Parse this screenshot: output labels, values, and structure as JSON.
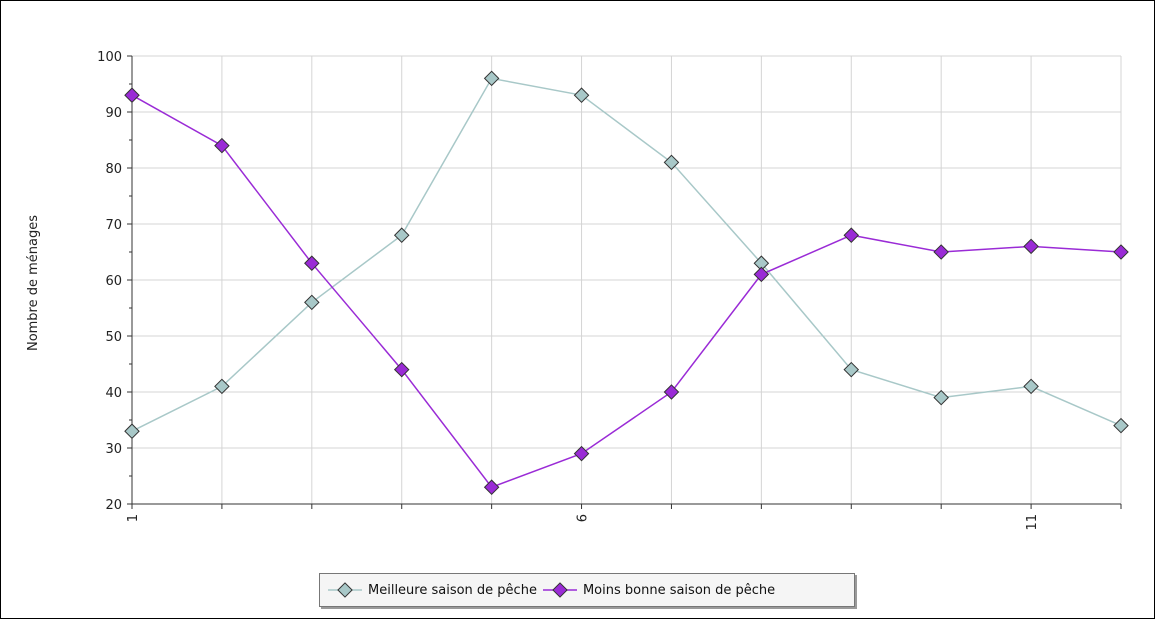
{
  "chart_data": {
    "type": "line",
    "x": [
      1,
      2,
      3,
      4,
      5,
      6,
      7,
      8,
      9,
      10,
      11,
      12
    ],
    "x_tick_labels": [
      "1",
      "6",
      "11"
    ],
    "xlim": [
      1,
      12
    ],
    "ylim": [
      20,
      100
    ],
    "y_ticks": [
      20,
      30,
      40,
      50,
      60,
      70,
      80,
      90,
      100
    ],
    "ylabel": "Nombre de ménages",
    "xlabel": "",
    "grid": true,
    "legend_position": "bottom-center",
    "series": [
      {
        "name": "Meilleure saison de pêche",
        "color": "#a8c8c8",
        "values": [
          33,
          41,
          56,
          68,
          96,
          93,
          81,
          63,
          44,
          39,
          41,
          34
        ]
      },
      {
        "name": "Moins bonne saison de pêche",
        "color": "#9a2bd6",
        "values": [
          93,
          84,
          63,
          44,
          23,
          29,
          40,
          61,
          68,
          65,
          66,
          65
        ]
      }
    ]
  }
}
